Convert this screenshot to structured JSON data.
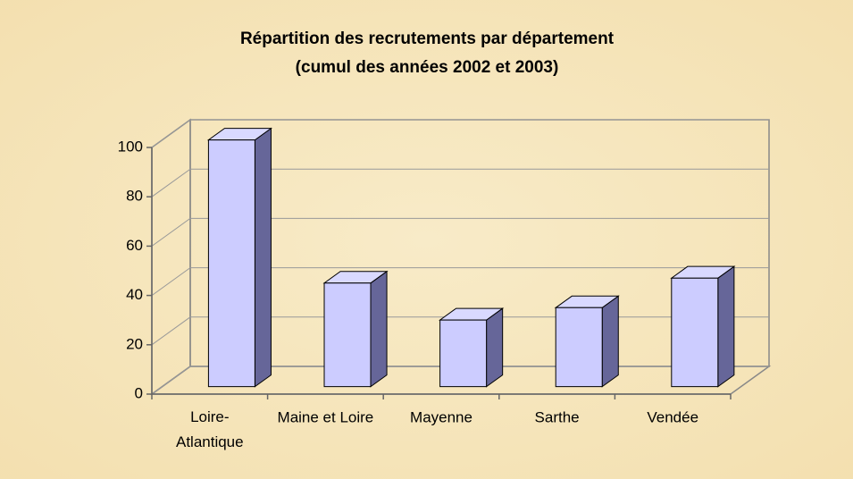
{
  "chart_data": {
    "type": "bar3d",
    "title": "Répartition des recrutements par département",
    "subtitle": "(cumul des années 2002 et 2003)",
    "categories": [
      "Loire-Atlantique",
      "Maine et Loire",
      "Mayenne",
      "Sarthe",
      "Vendée"
    ],
    "values": [
      100,
      42,
      27,
      32,
      44
    ],
    "color": "#ccccff",
    "side_color": "#666699",
    "ylim": [
      0,
      100
    ],
    "yticks": [
      0,
      20,
      40,
      60,
      80,
      100
    ],
    "grid": true
  }
}
